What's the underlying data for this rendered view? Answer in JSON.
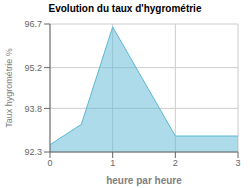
{
  "chart_data": {
    "type": "area",
    "title": "Evolution du taux d'hygrométrie",
    "xlabel": "heure par heure",
    "ylabel": "Taux hygrométrie %",
    "x": [
      0,
      0.5,
      1,
      2,
      2.0,
      3
    ],
    "values": [
      92.55,
      93.25,
      96.6,
      92.85,
      92.85,
      92.85
    ],
    "color": "#5bb8d4",
    "xlim": [
      0,
      3
    ],
    "ylim": [
      92.3,
      96.7
    ],
    "xticks": [
      0,
      1,
      2,
      3
    ],
    "yticks": [
      92.3,
      93.8,
      95.2,
      96.7
    ],
    "grid": true
  }
}
